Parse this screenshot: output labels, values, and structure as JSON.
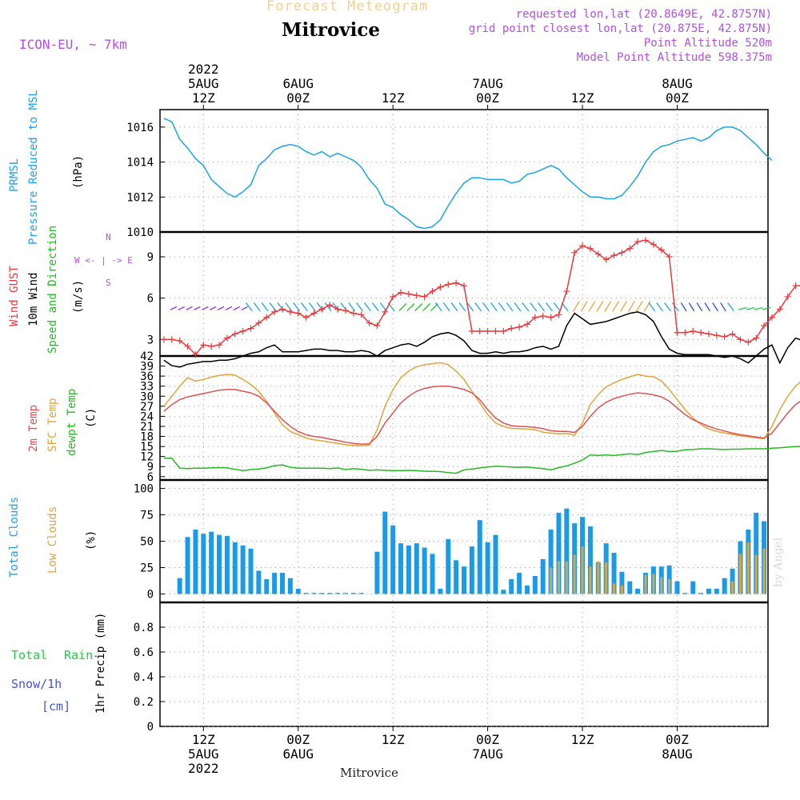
{
  "header": {
    "product": "Forecast Meteogram",
    "location": "Mitrovice",
    "model": "ICON-EU, ~ 7km",
    "requested": "requested lon,lat (20.8649E, 42.8757N)",
    "gridpoint": "grid point closest lon,lat (20.875E, 42.875N)",
    "point_alt": "Point Altitude 520m",
    "model_alt": "Model Point Altitude 598.375m",
    "watermark": "by Angel",
    "footer": "Mitrovice"
  },
  "time_axis": {
    "top_labels": [
      {
        "t": 1,
        "lines": [
          "2022",
          "5AUG",
          "12Z"
        ]
      },
      {
        "t": 13,
        "lines": [
          "6AUG",
          "00Z"
        ]
      },
      {
        "t": 25,
        "lines": [
          "12Z"
        ]
      },
      {
        "t": 37,
        "lines": [
          "7AUG",
          "00Z"
        ]
      },
      {
        "t": 49,
        "lines": [
          "12Z"
        ]
      },
      {
        "t": 61,
        "lines": [
          "8AUG",
          "00Z"
        ]
      }
    ],
    "bottom_labels": [
      {
        "t": 1,
        "lines": [
          "12Z",
          "5AUG",
          "2022"
        ]
      },
      {
        "t": 13,
        "lines": [
          "00Z",
          "6AUG"
        ]
      },
      {
        "t": 25,
        "lines": [
          "12Z"
        ]
      },
      {
        "t": 37,
        "lines": [
          "00Z",
          "7AUG"
        ]
      },
      {
        "t": 49,
        "lines": [
          "12Z"
        ]
      },
      {
        "t": 61,
        "lines": [
          "00Z",
          "8AUG"
        ]
      }
    ],
    "tmin": -4.5,
    "tmax": 72.5
  },
  "panel_labels": {
    "pressure": [
      "PRMSL",
      "Pressure Reduced to MSL",
      "(hPa)"
    ],
    "wind": [
      "Wind GUST",
      "10m Wind",
      "Speed and Direction",
      "(m/s)"
    ],
    "compass": [
      "N",
      "W <- | -> E",
      "S"
    ],
    "temp": [
      "2m Temp",
      "SFC Temp",
      "dewpt Temp",
      "(C)"
    ],
    "clouds": [
      "Total Clouds",
      "Low Clouds",
      "(%)"
    ],
    "precip": [
      "Total",
      "Rain",
      "Snow/1h",
      "[cm]",
      "1hr Precip (mm)"
    ]
  },
  "colors": {
    "pressure": "#1aa3e8",
    "gust": "#e8393c",
    "wind": "#000000",
    "sfc": "#e0a43a",
    "t2m": "#e05050",
    "dew": "#22bb22",
    "cloud_total": "#1a9be8",
    "cloud_low": "#d4a84a",
    "precip_label": "#22cc44",
    "snow_label": "#4455dd",
    "purple": "#b050e0"
  },
  "chart_data": [
    {
      "type": "line",
      "name": "pressure",
      "title": "PRMSL Pressure Reduced to MSL",
      "ylabel": "(hPa)",
      "ylim": [
        1010,
        1017
      ],
      "yticks": [
        1010,
        1012,
        1014,
        1016
      ],
      "t_start": -4,
      "step": 1,
      "values": [
        1016.5,
        1016.3,
        1015.3,
        1014.8,
        1014.2,
        1013.8,
        1013.0,
        1012.6,
        1012.2,
        1012.0,
        1012.3,
        1012.7,
        1013.8,
        1014.2,
        1014.7,
        1014.9,
        1015.0,
        1014.9,
        1014.6,
        1014.4,
        1014.6,
        1014.3,
        1014.5,
        1014.3,
        1014.1,
        1013.7,
        1013.0,
        1012.5,
        1011.6,
        1011.4,
        1011.0,
        1010.7,
        1010.3,
        1010.2,
        1010.3,
        1010.7,
        1011.5,
        1012.2,
        1012.8,
        1013.1,
        1013.1,
        1013.0,
        1013.0,
        1013.0,
        1012.8,
        1012.9,
        1013.3,
        1013.4,
        1013.6,
        1013.8,
        1013.6,
        1013.1,
        1012.7,
        1012.3,
        1012.0,
        1012.0,
        1011.9,
        1011.9,
        1012.1,
        1012.6,
        1013.2,
        1014.0,
        1014.6,
        1014.9,
        1015.0,
        1015.2,
        1015.3,
        1015.4,
        1015.2,
        1015.4,
        1015.8,
        1016.0,
        1016.0,
        1015.8,
        1015.4,
        1015.0,
        1014.5,
        1014.1
      ]
    },
    {
      "type": "line",
      "name": "wind",
      "title": "Wind GUST / 10m Wind Speed and Direction",
      "ylabel": "(m/s)",
      "ylim": [
        1.8,
        10.8
      ],
      "yticks": [
        3,
        6,
        9
      ],
      "t_start": -4,
      "step": 1,
      "series": [
        {
          "name": "Wind GUST",
          "values": [
            3.0,
            3.0,
            2.9,
            2.5,
            1.9,
            2.6,
            2.5,
            2.6,
            3.1,
            3.4,
            3.6,
            3.8,
            4.2,
            4.6,
            5.0,
            5.2,
            5.0,
            4.9,
            4.6,
            4.9,
            5.2,
            5.5,
            5.2,
            5.1,
            4.9,
            4.8,
            4.2,
            4.0,
            5.0,
            6.1,
            6.4,
            6.3,
            6.2,
            6.1,
            6.5,
            6.8,
            7.0,
            7.1,
            6.9,
            3.6,
            3.6,
            3.6,
            3.6,
            3.6,
            3.8,
            3.9,
            4.1,
            4.6,
            4.7,
            4.6,
            4.8,
            6.5,
            9.3,
            9.8,
            9.6,
            9.2,
            8.8,
            9.1,
            9.3,
            9.6,
            10.1,
            10.2,
            9.9,
            9.5,
            9.0,
            3.5,
            3.5,
            3.6,
            3.5,
            3.4,
            3.3,
            3.2,
            3.4,
            3.0,
            2.8,
            3.1,
            4.0,
            4.6,
            5.2,
            6.1,
            6.9,
            6.9
          ]
        },
        {
          "name": "10m Wind",
          "values": [
            1.5,
            1.1,
            1.0,
            1.2,
            1.3,
            1.4,
            1.4,
            1.5,
            1.5,
            1.6,
            1.8,
            2.0,
            2.1,
            2.4,
            2.6,
            2.1,
            2.1,
            2.1,
            2.2,
            2.3,
            2.3,
            2.2,
            2.2,
            2.1,
            2.1,
            2.2,
            2.1,
            1.8,
            2.2,
            2.4,
            2.6,
            2.7,
            2.5,
            2.8,
            3.2,
            3.4,
            3.5,
            3.3,
            2.9,
            2.2,
            2.0,
            2.0,
            2.1,
            2.0,
            2.1,
            2.1,
            2.2,
            2.4,
            2.5,
            2.3,
            2.5,
            4.0,
            4.9,
            4.5,
            4.1,
            4.2,
            4.3,
            4.5,
            4.7,
            4.9,
            5.0,
            4.8,
            4.3,
            3.2,
            2.3,
            2.0,
            1.9,
            1.9,
            1.9,
            1.9,
            1.8,
            1.7,
            1.8,
            1.6,
            1.3,
            1.8,
            2.3,
            2.6,
            1.3,
            2.4,
            3.1,
            2.9
          ]
        }
      ]
    },
    {
      "type": "line",
      "name": "temperature",
      "title": "2m Temp / SFC Temp / dewpt Temp",
      "ylabel": "(C)",
      "ylim": [
        5,
        42
      ],
      "yticks": [
        6,
        9,
        12,
        15,
        18,
        21,
        24,
        27,
        30,
        33,
        36,
        39,
        42
      ],
      "t_start": -4,
      "step": 1,
      "series": [
        {
          "name": "2m Temp",
          "values": [
            25.5,
            27.5,
            29.0,
            29.8,
            30.3,
            30.8,
            31.3,
            31.8,
            32.0,
            32.0,
            31.5,
            31.0,
            30.0,
            28.0,
            25.5,
            23.0,
            21.0,
            19.5,
            18.5,
            18.0,
            17.7,
            17.2,
            16.8,
            16.3,
            15.9,
            15.7,
            15.8,
            18.0,
            22.0,
            25.0,
            28.0,
            30.0,
            31.5,
            32.3,
            32.8,
            33.0,
            33.0,
            32.6,
            32.0,
            31.0,
            29.0,
            26.0,
            23.5,
            22.0,
            21.2,
            21.0,
            20.9,
            20.7,
            20.3,
            19.7,
            19.5,
            19.5,
            19.2,
            21.0,
            24.0,
            26.5,
            28.2,
            29.3,
            30.0,
            30.6,
            31.0,
            30.8,
            30.4,
            29.8,
            28.5,
            26.5,
            24.5,
            23.0,
            22.0,
            21.0,
            20.2,
            19.6,
            19.0,
            18.5,
            18.2,
            17.8,
            17.5,
            19.0,
            22.0,
            25.0,
            27.5,
            29.2,
            30.3,
            30.8,
            31.0
          ]
        },
        {
          "name": "SFC Temp",
          "values": [
            27.0,
            30.0,
            33.0,
            35.5,
            34.5,
            35.0,
            35.7,
            36.2,
            36.5,
            36.3,
            35.0,
            33.5,
            31.5,
            28.5,
            25.0,
            21.5,
            19.5,
            18.5,
            17.5,
            17.0,
            16.7,
            16.3,
            15.9,
            15.5,
            15.3,
            15.2,
            15.4,
            20.0,
            27.0,
            32.0,
            35.5,
            37.5,
            38.8,
            39.4,
            39.7,
            40.0,
            39.4,
            37.5,
            35.0,
            31.5,
            28.0,
            24.5,
            22.0,
            21.0,
            20.4,
            20.3,
            20.2,
            20.0,
            19.3,
            19.0,
            18.8,
            18.9,
            18.3,
            22.0,
            27.5,
            30.5,
            32.8,
            34.0,
            35.0,
            35.8,
            36.5,
            36.0,
            35.8,
            34.5,
            32.0,
            29.0,
            26.0,
            23.5,
            21.5,
            20.2,
            19.5,
            19.0,
            18.6,
            18.2,
            17.9,
            17.6,
            17.3,
            21.0,
            26.0,
            30.0,
            33.0,
            35.0,
            36.5,
            36.3,
            37.5
          ]
        },
        {
          "name": "dewpt Temp",
          "values": [
            11.5,
            11.5,
            8.5,
            8.4,
            8.5,
            8.5,
            8.6,
            8.7,
            8.6,
            8.2,
            7.8,
            8.1,
            8.3,
            8.6,
            9.3,
            9.5,
            8.8,
            8.5,
            8.5,
            8.5,
            8.5,
            8.4,
            8.6,
            8.1,
            8.4,
            8.2,
            7.9,
            8.0,
            7.9,
            7.8,
            7.8,
            7.9,
            7.8,
            7.6,
            7.6,
            7.5,
            7.2,
            7.0,
            8.0,
            8.3,
            8.6,
            8.9,
            9.1,
            9.0,
            8.9,
            8.8,
            8.9,
            8.6,
            8.4,
            8.0,
            8.7,
            9.2,
            10.0,
            11.0,
            12.5,
            12.3,
            12.5,
            12.3,
            12.6,
            12.8,
            12.6,
            13.2,
            13.5,
            13.8,
            13.5,
            13.6,
            14.0,
            14.1,
            14.3,
            14.3,
            14.2,
            14.1,
            14.2,
            14.2,
            14.3,
            14.3,
            14.3,
            14.5,
            14.6,
            14.8,
            15.0,
            15.0,
            14.9,
            13.8,
            10.5,
            11.5
          ]
        }
      ]
    },
    {
      "type": "bar",
      "name": "clouds",
      "title": "Total Clouds / Low Clouds",
      "ylabel": "(%)",
      "ylim": [
        -8,
        108
      ],
      "yticks": [
        0,
        25,
        50,
        75,
        100
      ],
      "t_start": -3,
      "step": 1,
      "series": [
        {
          "name": "Total Clouds",
          "values": [
            0,
            15,
            54,
            61,
            57,
            59,
            56,
            55,
            49,
            46,
            43,
            22,
            14,
            20,
            20,
            15,
            5,
            1,
            1,
            1,
            1,
            1,
            1,
            1,
            1,
            0,
            40,
            78,
            65,
            48,
            46,
            48,
            44,
            38,
            5,
            52,
            32,
            26,
            45,
            70,
            49,
            56,
            4,
            14,
            20,
            8,
            17,
            33,
            61,
            77,
            81,
            67,
            73,
            64,
            30,
            48,
            39,
            21,
            12,
            5,
            20,
            26,
            26,
            27,
            12,
            1,
            12,
            1,
            5,
            5,
            15,
            24,
            50,
            61,
            77,
            69
          ]
        },
        {
          "name": "Low Clouds",
          "values": [
            0,
            0,
            0,
            0,
            0,
            0,
            0,
            0,
            0,
            0,
            0,
            0,
            0,
            0,
            0,
            0,
            0,
            0,
            0,
            0,
            0,
            0,
            0,
            0,
            0,
            0,
            0,
            0,
            0,
            0,
            0,
            0,
            0,
            0,
            0,
            0,
            0,
            0,
            0,
            0,
            0,
            0,
            0,
            0,
            0,
            0,
            0,
            0,
            25,
            31,
            31,
            37,
            45,
            26,
            31,
            30,
            10,
            8,
            0,
            0,
            18,
            19,
            16,
            14,
            0,
            0,
            0,
            0,
            0,
            0,
            0,
            12,
            38,
            49,
            37,
            43
          ]
        }
      ]
    },
    {
      "type": "bar",
      "name": "precip",
      "title": "1hr Precip (mm)",
      "ylabel": "1hr Precip (mm)",
      "ylim": [
        0,
        1.0
      ],
      "yticks": [
        0,
        0.2,
        0.4,
        0.6,
        0.8
      ],
      "ytick_labels": [
        "0",
        "0.2",
        "0.4",
        "0.6",
        "0.8"
      ],
      "values": []
    }
  ]
}
